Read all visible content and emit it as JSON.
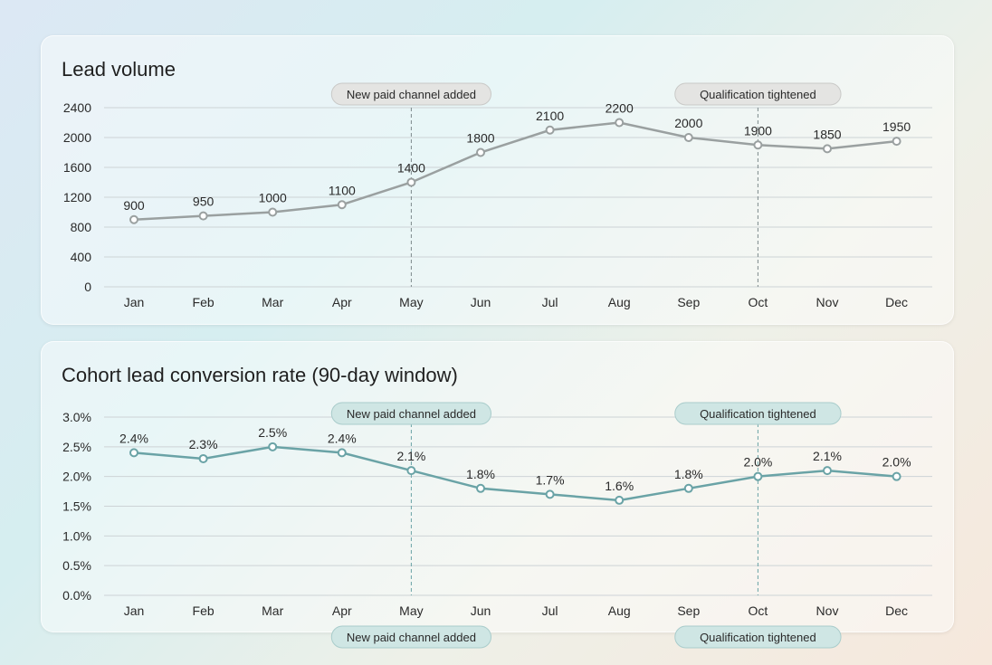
{
  "chart_data": [
    {
      "type": "line",
      "title": "Lead volume",
      "categories": [
        "Jan",
        "Feb",
        "Mar",
        "Apr",
        "May",
        "Jun",
        "Jul",
        "Aug",
        "Sep",
        "Oct",
        "Nov",
        "Dec"
      ],
      "values": [
        900,
        950,
        1000,
        1100,
        1400,
        1800,
        2100,
        2200,
        2000,
        1900,
        1850,
        1950
      ],
      "data_labels": [
        "900",
        "950",
        "1000",
        "1100",
        "1400",
        "1800",
        "2100",
        "2200",
        "2000",
        "1900",
        "1850",
        "1950"
      ],
      "yticks": [
        "0",
        "400",
        "800",
        "1200",
        "1600",
        "2000",
        "2400"
      ],
      "ytick_values": [
        0,
        400,
        800,
        1200,
        1600,
        2000,
        2400
      ],
      "ylim": [
        0,
        2400
      ],
      "grid": true,
      "line_color": "#9aa0a0",
      "annotations": [
        {
          "category": "May",
          "label": "New paid channel added",
          "pill_color": "#e4e4e2"
        },
        {
          "category": "Oct",
          "label": "Qualification tightened",
          "pill_color": "#e4e4e2"
        }
      ]
    },
    {
      "type": "line",
      "title": "Cohort lead conversion rate (90-day window)",
      "categories": [
        "Jan",
        "Feb",
        "Mar",
        "Apr",
        "May",
        "Jun",
        "Jul",
        "Aug",
        "Sep",
        "Oct",
        "Nov",
        "Dec"
      ],
      "values": [
        2.4,
        2.3,
        2.5,
        2.4,
        2.1,
        1.8,
        1.7,
        1.6,
        1.8,
        2.0,
        2.1,
        2.0
      ],
      "data_labels": [
        "2.4%",
        "2.3%",
        "2.5%",
        "2.4%",
        "2.1%",
        "1.8%",
        "1.7%",
        "1.6%",
        "1.8%",
        "2.0%",
        "2.1%",
        "2.0%"
      ],
      "yticks": [
        "0.0%",
        "0.5%",
        "1.0%",
        "1.5%",
        "2.0%",
        "2.5%",
        "3.0%"
      ],
      "ytick_values": [
        0,
        0.5,
        1.0,
        1.5,
        2.0,
        2.5,
        3.0
      ],
      "ylim": [
        0,
        3.0
      ],
      "grid": true,
      "line_color": "#6aa3a6",
      "annotations": [
        {
          "category": "May",
          "label": "New paid channel added",
          "pill_color": "#cfe6e4"
        },
        {
          "category": "Oct",
          "label": "Qualification tightened",
          "pill_color": "#cfe6e4"
        }
      ]
    }
  ]
}
